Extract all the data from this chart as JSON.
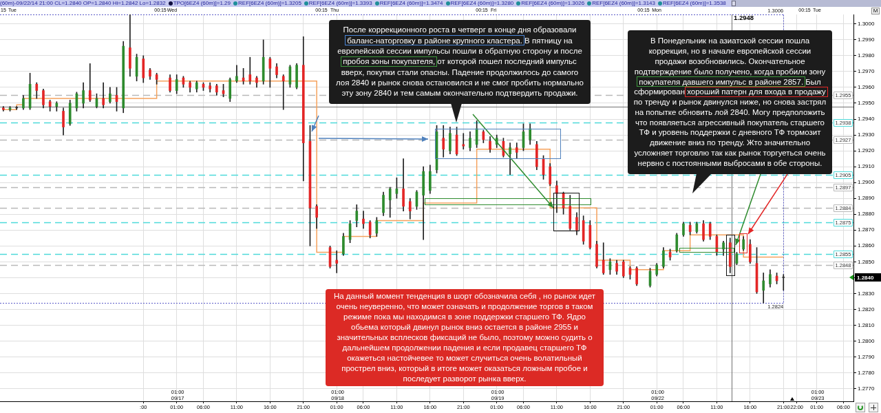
{
  "chart_data": {
    "type": "candlestick",
    "categories": [
      null,
      null,
      null,
      null,
      null,
      null,
      null,
      null,
      null,
      null,
      null,
      null,
      null,
      null,
      null,
      null,
      null,
      null,
      null,
      null,
      null,
      ":00",
      null,
      null,
      null,
      null,
      "01:00",
      null,
      null,
      null,
      "06:00",
      null,
      null,
      null,
      null,
      "11:00",
      null,
      null,
      null,
      null,
      "16:00",
      null,
      null,
      null,
      null,
      "21:00",
      null,
      null,
      null,
      null,
      "01:00",
      null,
      null,
      null,
      "06:00",
      null,
      null,
      null,
      null,
      "11:00",
      null,
      null,
      null,
      null,
      "16:00",
      null,
      null,
      null,
      null,
      "21:00",
      null,
      null,
      null,
      null,
      "01:00",
      null,
      null,
      null,
      "06:00",
      null,
      null,
      null,
      null,
      "11:00",
      null,
      null,
      null,
      null,
      "16:00",
      null,
      null,
      null,
      null,
      "21:00",
      null,
      null,
      null,
      null,
      "01:00",
      null,
      null,
      null,
      "06:00",
      null,
      null,
      null,
      null,
      "11:00",
      null,
      null,
      null,
      null,
      "16:00",
      null,
      null,
      null,
      null,
      "21:00",
      null,
      "22:00",
      null,
      null,
      "01:00",
      null,
      null,
      null,
      "06:00",
      null
    ],
    "series": [
      {
        "ohlc": [
          [
            1.2947,
            1.2948,
            1.2945,
            1.2946
          ],
          [
            1.2946,
            1.2948,
            1.2945,
            1.2947
          ],
          [
            1.2947,
            1.2948,
            1.2946,
            1.2947
          ],
          [
            1.2947,
            1.2955,
            1.2946,
            1.2953
          ],
          [
            1.2947,
            1.2969,
            1.2946,
            1.2962
          ],
          [
            1.2962,
            1.2963,
            1.2953,
            1.2958
          ],
          [
            1.2958,
            1.2959,
            1.2947,
            1.2949
          ],
          [
            1.2951,
            1.2952,
            1.2945,
            1.2948
          ],
          [
            1.2948,
            1.2951,
            1.2945,
            1.295
          ],
          [
            1.2945,
            1.2947,
            1.293,
            1.2935
          ],
          [
            1.2937,
            1.2952,
            1.2936,
            1.295
          ],
          [
            1.2947,
            1.2957,
            1.2945,
            1.2956
          ],
          [
            1.295,
            1.2963,
            1.2947,
            1.2958
          ],
          [
            1.2958,
            1.2975,
            1.2951,
            1.2952
          ],
          [
            1.2948,
            1.2956,
            1.2947,
            1.2953
          ],
          [
            1.2953,
            1.2963,
            1.2947,
            1.2949
          ],
          [
            1.2951,
            1.296,
            1.295,
            1.2956
          ],
          [
            1.2955,
            1.296,
            1.2945,
            1.2951
          ],
          [
            1.2947,
            1.2989,
            1.2944,
            1.2986
          ],
          [
            1.2985,
            1.3006,
            1.2967,
            1.2972
          ],
          [
            1.2967,
            1.2981,
            1.2964,
            1.2979
          ],
          [
            1.2978,
            1.298,
            1.2963,
            1.2966
          ],
          [
            1.2971,
            1.2972,
            1.2965,
            1.2967
          ],
          [
            1.2968,
            1.2969,
            1.2962,
            1.2965
          ],
          null,
          [
            1.2966,
            1.2968,
            1.2957,
            1.2958
          ],
          [
            1.2958,
            1.2968,
            1.2956,
            1.2965
          ],
          [
            1.2966,
            1.2967,
            1.296,
            1.2962
          ],
          [
            1.2963,
            1.2964,
            1.2957,
            1.296
          ],
          [
            1.2959,
            1.2964,
            1.2957,
            1.2963
          ],
          [
            1.2962,
            1.2963,
            1.2958,
            1.296
          ],
          [
            1.2961,
            1.2963,
            1.2957,
            1.2959
          ],
          [
            1.2961,
            1.2962,
            1.2955,
            1.2957
          ],
          [
            1.2958,
            1.2962,
            1.2954,
            1.2956
          ],
          [
            1.2953,
            1.2966,
            1.2951,
            1.2965
          ],
          [
            1.2964,
            1.2974,
            1.2963,
            1.2967
          ],
          [
            1.2966,
            1.2972,
            1.2962,
            1.2964
          ],
          [
            1.2968,
            1.2979,
            1.2962,
            1.2964
          ],
          [
            1.2966,
            1.2967,
            1.296,
            1.2963
          ],
          [
            1.2964,
            1.299,
            1.2962,
            1.2979
          ],
          [
            1.2978,
            1.2979,
            1.296,
            1.2972
          ],
          [
            1.2973,
            1.2975,
            1.2966,
            1.2968
          ],
          [
            1.2967,
            1.2968,
            1.2946,
            1.2964
          ],
          [
            1.2962,
            1.2974,
            1.296,
            1.2973
          ],
          [
            1.296,
            1.2975,
            1.2959,
            1.2974
          ],
          [
            1.2974,
            1.2992,
            1.2901,
            1.2925
          ],
          [
            1.2926,
            1.2936,
            1.286,
            1.2884
          ],
          [
            1.2885,
            1.2886,
            1.2871,
            1.2878
          ],
          null,
          [
            1.2859,
            1.286,
            1.2846,
            1.2847
          ],
          [
            1.2851,
            1.2857,
            1.2843,
            1.2849
          ],
          [
            1.2855,
            1.2868,
            1.2854,
            1.2866
          ],
          [
            1.2864,
            1.2876,
            1.2862,
            1.2874
          ],
          [
            1.2876,
            1.2886,
            1.2872,
            1.2882
          ],
          [
            1.2877,
            1.2882,
            1.2871,
            1.2874
          ],
          [
            1.2875,
            1.2876,
            1.2865,
            1.2867
          ],
          [
            1.2868,
            1.2878,
            1.2866,
            1.2876
          ],
          [
            1.2881,
            1.2894,
            1.2879,
            1.2892
          ],
          [
            1.2889,
            1.2897,
            1.2878,
            1.2896
          ],
          [
            1.2893,
            1.2903,
            1.289,
            1.2896
          ],
          [
            1.2896,
            1.2915,
            1.2882,
            1.2885
          ],
          [
            1.2888,
            1.289,
            1.2877,
            1.2882
          ],
          [
            1.2885,
            1.2895,
            1.2883,
            1.2894
          ],
          [
            1.2892,
            1.291,
            1.2864,
            1.2907
          ],
          [
            1.2895,
            1.2911,
            1.2893,
            1.2907
          ],
          [
            1.2908,
            1.2936,
            1.2906,
            1.2932
          ],
          [
            1.2928,
            1.2936,
            1.2916,
            1.2921
          ],
          [
            1.292,
            1.2935,
            1.2918,
            1.2931
          ],
          [
            1.293,
            1.2935,
            1.2917,
            1.2918
          ],
          [
            1.2924,
            1.2931,
            1.2921,
            1.2923
          ],
          [
            1.2922,
            1.2932,
            1.292,
            1.2928
          ],
          [
            1.2924,
            1.2939,
            1.2922,
            1.2934
          ],
          [
            1.2932,
            1.2933,
            1.2925,
            1.2927
          ],
          [
            1.2926,
            1.2929,
            1.2919,
            1.2921
          ],
          [
            1.2924,
            1.293,
            1.2922,
            1.2928
          ],
          [
            1.2926,
            1.2928,
            1.2916,
            1.2917
          ],
          [
            1.2918,
            1.2925,
            1.2905,
            1.2922
          ],
          [
            1.2922,
            1.2925,
            1.2915,
            1.2919
          ],
          [
            1.2922,
            1.2937,
            1.292,
            1.2932
          ],
          [
            1.2927,
            1.2937,
            1.2924,
            1.2934
          ],
          [
            1.2924,
            1.2926,
            1.2908,
            1.291
          ],
          [
            1.2915,
            1.2917,
            1.2902,
            1.2905
          ],
          [
            1.291,
            1.2912,
            1.2898,
            1.2899
          ],
          [
            1.2898,
            1.2901,
            1.2881,
            1.2893
          ],
          [
            1.2893,
            1.2894,
            1.288,
            1.2884
          ],
          [
            1.2885,
            1.2892,
            1.287,
            1.2871
          ],
          [
            1.2878,
            1.2881,
            1.2867,
            1.287
          ],
          [
            1.2876,
            1.2879,
            1.2861,
            1.2863
          ],
          [
            1.2873,
            1.2876,
            1.2858,
            1.2859
          ],
          [
            1.2861,
            1.2863,
            1.2846,
            1.2847
          ],
          [
            1.2851,
            1.2862,
            1.2842,
            1.2843
          ],
          [
            1.2845,
            1.2852,
            1.2842,
            1.285
          ],
          [
            1.2849,
            1.2851,
            1.2842,
            1.2844
          ],
          [
            1.285,
            1.2851,
            1.284,
            1.2841
          ],
          [
            1.2846,
            1.2847,
            1.2839,
            1.2842
          ],
          [
            1.2846,
            1.2847,
            1.2835,
            1.2836
          ],
          null,
          [
            1.2835,
            1.2846,
            1.2834,
            1.2844
          ],
          [
            1.2842,
            1.2849,
            1.2841,
            1.2848
          ],
          [
            1.2847,
            1.2859,
            1.2846,
            1.2857
          ],
          [
            1.2856,
            1.2858,
            1.2851,
            1.2853
          ],
          [
            1.2857,
            1.2868,
            1.2856,
            1.2867
          ],
          [
            1.2867,
            1.2875,
            1.2866,
            1.2874
          ],
          [
            1.2873,
            1.2875,
            1.2867,
            1.2869
          ],
          [
            1.2869,
            1.2875,
            1.2868,
            1.2874
          ],
          [
            1.2874,
            1.2876,
            1.2863,
            1.2864
          ],
          [
            1.2874,
            1.2875,
            1.2864,
            1.2866
          ],
          [
            1.2866,
            1.2867,
            1.2854,
            1.2856
          ],
          [
            1.2858,
            1.2863,
            1.2854,
            1.2862
          ],
          [
            1.2862,
            1.2865,
            1.2843,
            1.2847
          ],
          [
            1.2849,
            1.2856,
            1.2848,
            1.2855
          ],
          [
            1.2858,
            1.2866,
            1.2857,
            1.2864
          ],
          [
            1.2861,
            1.2864,
            1.2849,
            1.285
          ],
          [
            1.2849,
            1.2859,
            1.283,
            1.2831
          ],
          [
            1.2832,
            1.2843,
            1.2824,
            1.2838
          ],
          [
            1.2836,
            1.2845,
            1.2834,
            1.2842
          ],
          [
            1.2841,
            1.2843,
            1.2836,
            1.2838
          ],
          [
            1.284,
            1.2842,
            1.2832,
            1.284
          ],
          null,
          null,
          null,
          null,
          null,
          null,
          null,
          null,
          null,
          null
        ],
        "colors": [
          "#e32626",
          "#2e8b2e",
          "#333333",
          "#2e8b2e",
          "#2e8b2e",
          "#e32626",
          "#e32626",
          "#e32626",
          "#2e8b2e",
          "#e32626",
          "#2e8b2e",
          "#2e8b2e",
          "#2e8b2e",
          "#e32626",
          "#2e8b2e",
          "#e32626",
          "#2e8b2e",
          "#e32626",
          "#2e8b2e",
          "#e32626",
          "#2e8b2e",
          "#e32626",
          "#e32626",
          "#e32626",
          null,
          "#e32626",
          "#2e8b2e",
          "#e32626",
          "#e32626",
          "#2e8b2e",
          "#e32626",
          "#e32626",
          "#e32626",
          "#e32626",
          "#2e8b2e",
          "#2e8b2e",
          "#e32626",
          "#e32626",
          "#e32626",
          "#2e8b2e",
          "#e32626",
          "#e32626",
          "#e32626",
          "#2e8b2e",
          "#2e8b2e",
          "#e32626",
          "#e32626",
          "#e32626",
          null,
          "#e32626",
          "#e32626",
          "#2e8b2e",
          "#2e8b2e",
          "#2e8b2e",
          "#e32626",
          "#e32626",
          "#2e8b2e",
          "#2e8b2e",
          "#2e8b2e",
          "#2e8b2e",
          "#e32626",
          "#e32626",
          "#2e8b2e",
          "#2e8b2e",
          "#2e8b2e",
          "#2e8b2e",
          "#e32626",
          "#2e8b2e",
          "#e32626",
          "#e32626",
          "#2e8b2e",
          "#2e8b2e",
          "#e32626",
          "#e32626",
          "#2e8b2e",
          "#e32626",
          "#2e8b2e",
          "#e32626",
          "#2e8b2e",
          "#2e8b2e",
          "#e32626",
          "#e32626",
          "#e32626",
          "#e32626",
          "#e32626",
          "#e32626",
          "#e32626",
          "#e32626",
          "#e32626",
          "#e32626",
          "#e32626",
          "#2e8b2e",
          "#e32626",
          "#e32626",
          "#e32626",
          "#e32626",
          null,
          "#2e8b2e",
          "#2e8b2e",
          "#2e8b2e",
          "#e32626",
          "#2e8b2e",
          "#2e8b2e",
          "#e32626",
          "#2e8b2e",
          "#e32626",
          "#e32626",
          "#e32626",
          "#2e8b2e",
          "#e32626",
          "#2e8b2e",
          "#2e8b2e",
          "#e32626",
          "#e32626",
          "#2e8b2e",
          "#2e8b2e",
          "#e32626",
          "#333333",
          null,
          null,
          null,
          null,
          null,
          null,
          null,
          null,
          null,
          null
        ]
      },
      {
        "type": "step",
        "color": "#f5a25d",
        "values": [
          1.2946,
          1.2946,
          1.2946,
          1.2949,
          1.2953,
          1.2953,
          1.2953,
          1.2953,
          1.2953,
          1.2953,
          1.2953,
          1.2953,
          1.2953,
          1.2953,
          1.2953,
          1.2953,
          1.2953,
          1.2953,
          1.2953,
          1.2953,
          1.2953,
          1.2953,
          1.2953,
          1.2953,
          1.2964,
          1.2964,
          1.2964,
          1.2964,
          1.2964,
          1.2964,
          1.2964,
          1.2964,
          1.2964,
          1.2964,
          1.2964,
          1.2964,
          1.2964,
          1.2964,
          1.2964,
          1.2964,
          1.2964,
          1.2964,
          1.2964,
          1.2964,
          1.2964,
          1.2964,
          1.2964,
          1.2964,
          1.2856,
          1.2856,
          1.2856,
          1.2856,
          1.2866,
          1.2866,
          1.2866,
          1.2866,
          1.2866,
          1.2876,
          1.2876,
          1.2876,
          1.2876,
          1.2876,
          1.2876,
          1.2876,
          1.2887,
          1.2887,
          1.2887,
          1.2887,
          1.2887,
          1.2887,
          1.2887,
          1.2887,
          1.2921,
          1.2921,
          1.2921,
          1.2921,
          1.2921,
          1.2921,
          1.2921,
          1.2921,
          1.2921,
          1.2921,
          1.2921,
          1.2884,
          1.2884,
          1.2884,
          1.2884,
          1.2884,
          1.2884,
          1.2884,
          1.2851,
          1.2851,
          1.2851,
          1.2851,
          1.2851,
          1.2845,
          1.2845,
          1.2845,
          1.2845,
          1.2845,
          1.2857,
          1.2857,
          1.2857,
          1.2857,
          1.2867,
          1.2867,
          1.2867,
          1.2867,
          1.2867,
          1.2867,
          1.2867,
          1.2867,
          1.2853,
          1.2853,
          1.2853,
          1.2853,
          1.2853,
          1.2853,
          null,
          null,
          null,
          null,
          null,
          null,
          null,
          null,
          null,
          null
        ]
      }
    ],
    "ylim": [
      1.2762,
      1.3006
    ],
    "yticks": [
      {
        "value": 1.277,
        "label": "1.2770"
      },
      {
        "value": 1.278,
        "label": "1.2780"
      },
      {
        "value": 1.279,
        "label": "1.2790"
      },
      {
        "value": 1.28,
        "label": "1.2800"
      },
      {
        "value": 1.281,
        "label": "1.2810"
      },
      {
        "value": 1.282,
        "label": "1.2820"
      },
      {
        "value": 1.283,
        "label": "1.2830"
      },
      {
        "value": 1.284,
        "label": null
      },
      {
        "value": 1.285,
        "label": "1.2850"
      },
      {
        "value": 1.286,
        "label": "1.2860"
      },
      {
        "value": 1.287,
        "label": "1.2870"
      },
      {
        "value": 1.288,
        "label": "1.2880"
      },
      {
        "value": 1.289,
        "label": "1.2890"
      },
      {
        "value": 1.29,
        "label": "1.2900"
      },
      {
        "value": 1.291,
        "label": "1.2910"
      },
      {
        "value": 1.292,
        "label": "1.2920"
      },
      {
        "value": 1.293,
        "label": "1.2930"
      },
      {
        "value": 1.294,
        "label": "1.2940"
      },
      {
        "value": 1.295,
        "label": "1.2950"
      },
      {
        "value": 1.296,
        "label": "1.2960"
      },
      {
        "value": 1.297,
        "label": "1.2970"
      },
      {
        "value": 1.298,
        "label": "1.2980"
      },
      {
        "value": 1.299,
        "label": "1.2990"
      },
      {
        "value": 1.3,
        "label": "1.3000"
      }
    ],
    "grid": true,
    "ref_lines": [
      {
        "axis": "y",
        "value": 1.3006,
        "label": "1.3006",
        "color": "#5a5ac8",
        "line_style": "dotted"
      },
      {
        "axis": "y",
        "value": 1.2955,
        "label": "1.2955",
        "color": "#b8b8b8",
        "line_style": "dashed"
      },
      {
        "axis": "y",
        "value": 1.2948,
        "label": "1.2948",
        "color": "#707070",
        "line_style": "solid"
      },
      {
        "axis": "y",
        "value": 1.2938,
        "label": "1.2938",
        "color": "#4dd9d9",
        "line_style": "dashed"
      },
      {
        "axis": "y",
        "value": 1.2927,
        "label": "1.2927",
        "color": "#b8b8b8",
        "line_style": "dashed"
      },
      {
        "axis": "y",
        "value": 1.2905,
        "label": "1.2905",
        "color": "#4dd9d9",
        "line_style": "dashed"
      },
      {
        "axis": "y",
        "value": 1.2897,
        "label": "1.2897",
        "color": "#b8b8b8",
        "line_style": "dashed"
      },
      {
        "axis": "y",
        "value": 1.2884,
        "label": "1.2884",
        "color": "#b8b8b8",
        "line_style": "dashed"
      },
      {
        "axis": "y",
        "value": 1.2875,
        "label": "1.2875",
        "color": "#4dd9d9",
        "line_style": "dashed"
      },
      {
        "axis": "y",
        "value": 1.2855,
        "label": "1.2855",
        "color": "#4dd9d9",
        "line_style": "dashed"
      },
      {
        "axis": "y",
        "value": 1.2848,
        "label": "1.2848",
        "color": "#b8b8b8",
        "line_style": "dashed"
      },
      {
        "axis": "y",
        "value": 1.2824,
        "label": "1.2824",
        "color": "#5a5ac8",
        "line_style": "dotted"
      }
    ],
    "annotations": [
      "(60m)-09/22/14 21:00 CL=1.2840 OP=1.2840 Hi=1.2842 Lo=1.2832",
      "TPO[6EZ4 (60m)]=1.29",
      "REF[6EZ4 (60m)]=1.3205",
      "REF[6EZ4 (60m)]=1.3393",
      "REF[6EZ4 (60m)]=1.3474",
      "REF[6EZ4 (60m)]=1.3280",
      "REF[6EZ4 (60m)]=1.3026",
      "REF[6EZ4 (60m)]=1.3143",
      "REF[6EZ4 (60m)]=1.3538",
      "После коррекционного роста в четверг в конце дня образовали баланс-наторговку в районе крупного кластера. В пятницу на европейской сессии импульсы пошли в обратную сторону и после пробоя зоны покупателя, от которой пошел последний импульс вверх, покупки стали опасны. Падение продолжилось до самого лоя 2840 и рынок снова остановился и не смог пробить нормально эту зону 2840 и тем самым окончательно подтвердить продажи.",
      "В Понедельник на азиатской сессии пошла коррекция, но в начале европейской сессии продажи возобновились. Окончательное подтверждение было получено, когда пробили зону покупателя давшего импульс в районе 2857. Был сформирован хороший патерн для входа в продажу по тренду и рынок двинулся ниже, но снова застрял на попытке обновить лой 2840. Могу предположить что появляеться агрессивный покупатель старшего ТФ и уровень поддержки с дневного ТФ тормозит движение вниз по тренду. Жто значительно усложняет торговлю так как рынок торгуеться очень нервно с постоянными выбросами в обе стороны.",
      "На данный момент тенденция в шорт обозначила себя , но рынок идет очень неуверенно, что может означать и продолжение торгов в таком режиме пока мы находимся в зоне поддержки старшего ТФ. Ядро обьема который двинул рынок вниз остается в районе 2955 и значительных всплесков фиксаций не было, поэтому можно судить о дальнейшем продолжении падения и если продавец старшего ТФ окажеться настойчевее то может случиться очень волатильный прострел вниз, который в итоге может оказаться ложным пробое и последует разворот рынка вверх.",
      "M",
      "15",
      "Tue",
      "00:15",
      "Wed",
      "00:15",
      "Thu",
      "00:15",
      "Fri",
      "00:15",
      "Mon",
      "00:15",
      "Tue",
      "01:00\n09/17",
      "01:00\n09/18",
      "01:00\n09/19",
      "01:00\n09/22",
      "01:00\n09/23",
      "1.2840"
    ]
  }
}
